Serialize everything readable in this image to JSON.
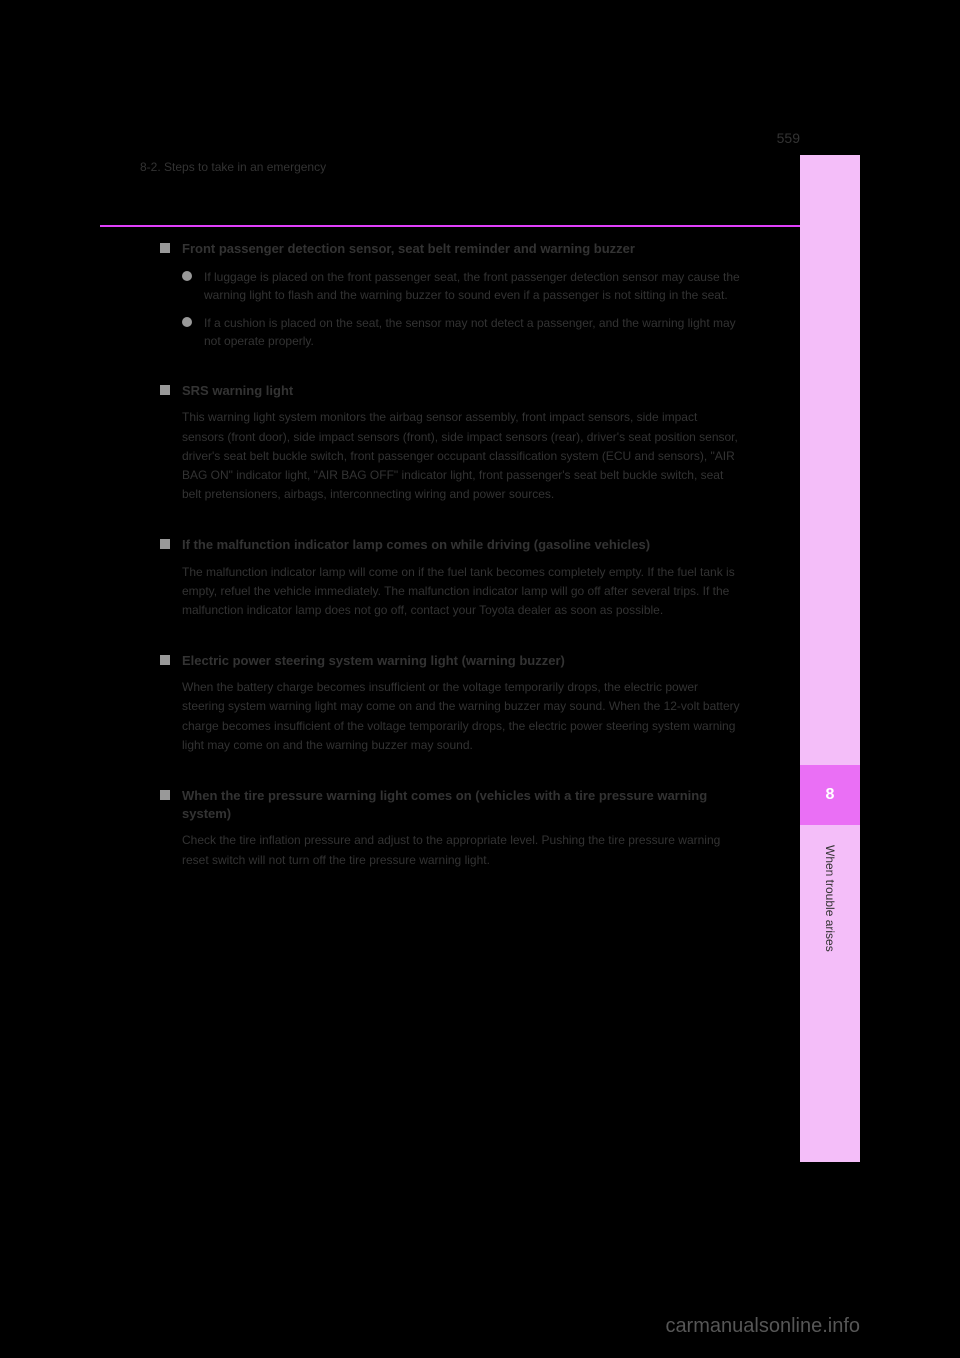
{
  "header": {
    "page_number": "559",
    "section": "8-2. Steps to take in an emergency"
  },
  "sidebar": {
    "background_color": "#f4bef9",
    "chapter_bg_color": "#ea6ff5",
    "chapter_number": "8",
    "chapter_label": "When trouble arises"
  },
  "divider_color": "#e040fb",
  "items": [
    {
      "type": "square",
      "title": "Front passenger detection sensor, seat belt reminder and warning buzzer",
      "subs": [
        {
          "type": "round",
          "text": "If luggage is placed on the front passenger seat, the front passenger detection sensor may cause the warning light to flash and the warning buzzer to sound even if a passenger is not sitting in the seat."
        },
        {
          "type": "round",
          "text": "If a cushion is placed on the seat, the sensor may not detect a passenger, and the warning light may not operate properly."
        }
      ]
    },
    {
      "type": "square",
      "title": "SRS warning light",
      "body": "This warning light system monitors the airbag sensor assembly, front impact sensors, side impact sensors (front door), side impact sensors (front), side impact sensors (rear), driver's seat position sensor, driver's seat belt buckle switch, front passenger occupant classification system (ECU and sensors), \"AIR BAG ON\" indicator light, \"AIR BAG OFF\" indicator light, front passenger's seat belt buckle switch, seat belt pretensioners, airbags, interconnecting wiring and power sources."
    },
    {
      "type": "square",
      "title": "If the malfunction indicator lamp comes on while driving (gasoline vehicles)",
      "body": "The malfunction indicator lamp will come on if the fuel tank becomes completely empty. If the fuel tank is empty, refuel the vehicle immediately. The malfunction indicator lamp will go off after several trips. If the malfunction indicator lamp does not go off, contact your Toyota dealer as soon as possible."
    },
    {
      "type": "square",
      "title": "Electric power steering system warning light (warning buzzer)",
      "body": "When the battery charge becomes insufficient or the voltage temporarily drops, the electric power steering system warning light may come on and the warning buzzer may sound. When the 12-volt battery charge becomes insufficient of the voltage temporarily drops, the electric power steering system warning light may come on and the warning buzzer may sound."
    },
    {
      "type": "square",
      "title": "When the tire pressure warning light comes on (vehicles with a tire pressure warning system)",
      "body": "Check the tire inflation pressure and adjust to the appropriate level. Pushing the tire pressure warning reset switch will not turn off the tire pressure warning light."
    }
  ],
  "watermark": "carmanualsonline.info"
}
